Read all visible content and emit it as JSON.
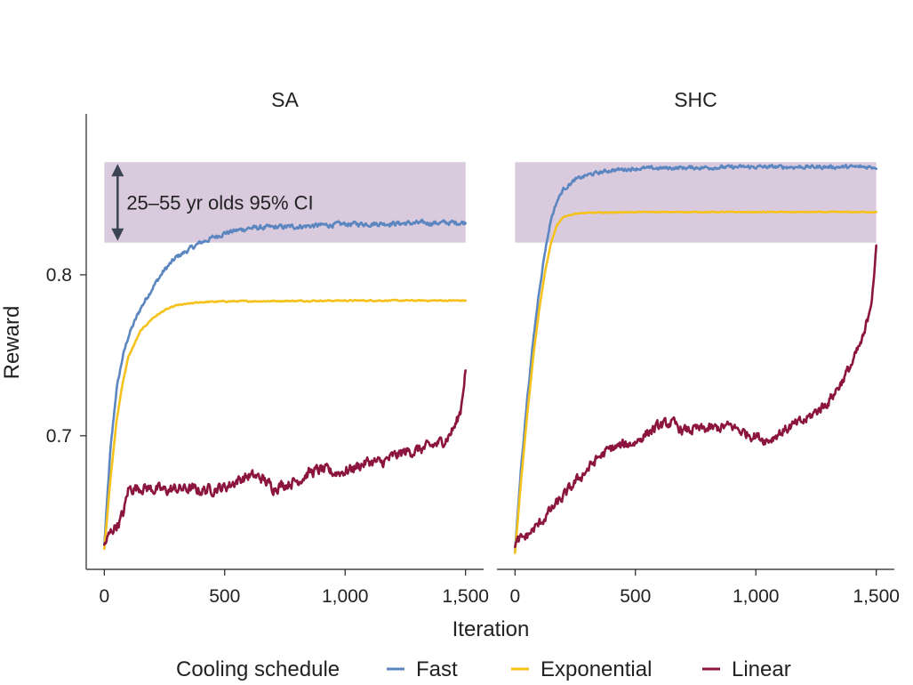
{
  "chart_data": {
    "type": "line",
    "ylabel": "Reward",
    "xlabel": "Iteration",
    "ylim": [
      0.617,
      0.9
    ],
    "yticks": [
      {
        "value": 0.7,
        "label": "0.7"
      },
      {
        "value": 0.8,
        "label": "0.8"
      }
    ],
    "xlim": [
      -75,
      1575
    ],
    "xticks": [
      {
        "value": 0,
        "label": "0"
      },
      {
        "value": 500,
        "label": "500"
      },
      {
        "value": 1000,
        "label": "1,000"
      },
      {
        "value": 1500,
        "label": "1,500"
      }
    ],
    "band": {
      "y_min": 0.82,
      "y_max": 0.87,
      "color": "#d9cade"
    },
    "annotation": "25–55 yr olds 95% CI",
    "legend": {
      "title": "Cooling schedule",
      "placement": "bottom"
    },
    "colors": {
      "Fast": "#5b86bf",
      "Exponential": "#f4c21b",
      "Linear": "#8c1540",
      "axis": "#222222",
      "arrow": "#3b4452"
    },
    "panels": [
      {
        "title": "SA",
        "show_annotation": true,
        "series": [
          {
            "name": "Fast",
            "x": [
              0,
              25,
              50,
              75,
              100,
              150,
              200,
              250,
              300,
              400,
              500,
              600,
              800,
              1000,
              1250,
              1500
            ],
            "y": [
              0.632,
              0.69,
              0.728,
              0.748,
              0.762,
              0.779,
              0.792,
              0.803,
              0.811,
              0.82,
              0.826,
              0.829,
              0.83,
              0.8315,
              0.832,
              0.8325
            ],
            "noise": 0.0012
          },
          {
            "name": "Exponential",
            "x": [
              0,
              25,
              50,
              75,
              100,
              150,
              200,
              250,
              300,
              400,
              500,
              1000,
              1500
            ],
            "y": [
              0.63,
              0.672,
              0.708,
              0.732,
              0.749,
              0.765,
              0.773,
              0.778,
              0.781,
              0.783,
              0.7835,
              0.784,
              0.784
            ],
            "noise": 0.0003
          },
          {
            "name": "Linear",
            "x": [
              0,
              20,
              40,
              60,
              80,
              100,
              150,
              200,
              250,
              300,
              350,
              400,
              450,
              500,
              550,
              600,
              650,
              700,
              750,
              800,
              850,
              900,
              950,
              1000,
              1050,
              1100,
              1150,
              1200,
              1250,
              1300,
              1350,
              1400,
              1430,
              1460,
              1480,
              1500
            ],
            "y": [
              0.632,
              0.638,
              0.643,
              0.646,
              0.652,
              0.667,
              0.668,
              0.667,
              0.666,
              0.667,
              0.667,
              0.666,
              0.667,
              0.668,
              0.672,
              0.675,
              0.674,
              0.668,
              0.67,
              0.672,
              0.677,
              0.679,
              0.677,
              0.678,
              0.681,
              0.684,
              0.683,
              0.687,
              0.69,
              0.691,
              0.693,
              0.696,
              0.7,
              0.707,
              0.716,
              0.742
            ],
            "noise": 0.0028
          }
        ]
      },
      {
        "title": "SHC",
        "show_annotation": false,
        "series": [
          {
            "name": "Fast",
            "x": [
              0,
              25,
              50,
              75,
              100,
              125,
              150,
              175,
              200,
              250,
              300,
              400,
              500,
              700,
              1000,
              1500
            ],
            "y": [
              0.628,
              0.68,
              0.722,
              0.758,
              0.79,
              0.815,
              0.835,
              0.846,
              0.853,
              0.859,
              0.862,
              0.865,
              0.866,
              0.8665,
              0.867,
              0.867
            ],
            "noise": 0.0009
          },
          {
            "name": "Exponential",
            "x": [
              0,
              25,
              50,
              75,
              100,
              125,
              150,
              175,
              200,
              250,
              300,
              500,
              1000,
              1500
            ],
            "y": [
              0.627,
              0.672,
              0.712,
              0.748,
              0.778,
              0.802,
              0.82,
              0.831,
              0.836,
              0.838,
              0.8385,
              0.839,
              0.839,
              0.839
            ],
            "noise": 0.0002
          },
          {
            "name": "Linear",
            "x": [
              0,
              50,
              100,
              150,
              200,
              250,
              300,
              350,
              400,
              450,
              500,
              550,
              600,
              650,
              700,
              750,
              800,
              850,
              900,
              950,
              1000,
              1050,
              1100,
              1150,
              1200,
              1250,
              1300,
              1350,
              1400,
              1450,
              1480,
              1500
            ],
            "y": [
              0.633,
              0.638,
              0.645,
              0.654,
              0.662,
              0.671,
              0.679,
              0.687,
              0.692,
              0.694,
              0.696,
              0.702,
              0.706,
              0.708,
              0.703,
              0.704,
              0.704,
              0.705,
              0.706,
              0.702,
              0.7,
              0.697,
              0.702,
              0.706,
              0.709,
              0.715,
              0.721,
              0.732,
              0.745,
              0.762,
              0.785,
              0.815
            ],
            "noise": 0.0026
          }
        ]
      }
    ]
  }
}
